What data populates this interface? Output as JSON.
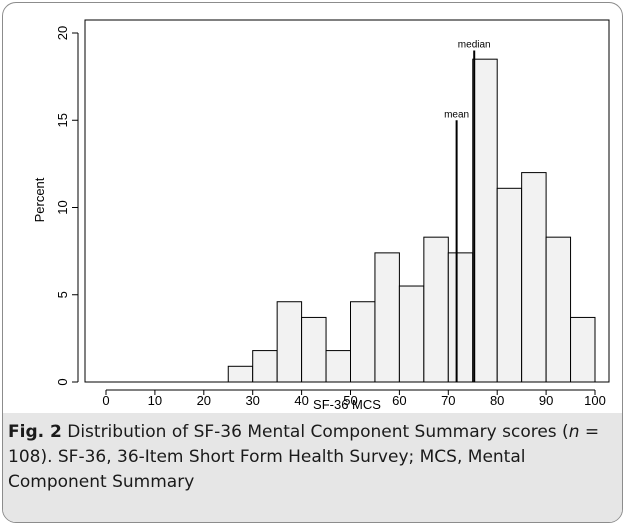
{
  "caption": {
    "label": "Fig. 2",
    "text_1": "Distribution of SF-36 Mental Component Summary scores (",
    "n_symbol": "n",
    "text_2": " = 108). SF-36, 36-Item Short Form Health Survey; MCS, Mental Component Summary"
  },
  "chart_data": {
    "type": "bar",
    "xlabel": "SF-36 MCS",
    "ylabel": "Percent",
    "xlim": [
      0,
      100
    ],
    "ylim": [
      0,
      20
    ],
    "xticks": [
      0,
      10,
      20,
      30,
      40,
      50,
      60,
      70,
      80,
      90,
      100
    ],
    "yticks": [
      0,
      5,
      10,
      15,
      20
    ],
    "bin_width": 5,
    "bins": [
      {
        "start": 25,
        "value": 0.9
      },
      {
        "start": 30,
        "value": 1.8
      },
      {
        "start": 35,
        "value": 4.6
      },
      {
        "start": 40,
        "value": 3.7
      },
      {
        "start": 45,
        "value": 1.8
      },
      {
        "start": 50,
        "value": 4.6
      },
      {
        "start": 55,
        "value": 7.4
      },
      {
        "start": 60,
        "value": 5.5
      },
      {
        "start": 65,
        "value": 8.3
      },
      {
        "start": 70,
        "value": 7.4
      },
      {
        "start": 75,
        "value": 18.5
      },
      {
        "start": 80,
        "value": 11.1
      },
      {
        "start": 85,
        "value": 12.0
      },
      {
        "start": 90,
        "value": 8.3
      },
      {
        "start": 95,
        "value": 3.7
      }
    ],
    "reference_lines": [
      {
        "label": "mean",
        "x": 71.7,
        "height": 15
      },
      {
        "label": "median",
        "x": 75.3,
        "height": 19
      }
    ],
    "bar_fill": "#f2f2f2",
    "bar_stroke": "#000000"
  }
}
